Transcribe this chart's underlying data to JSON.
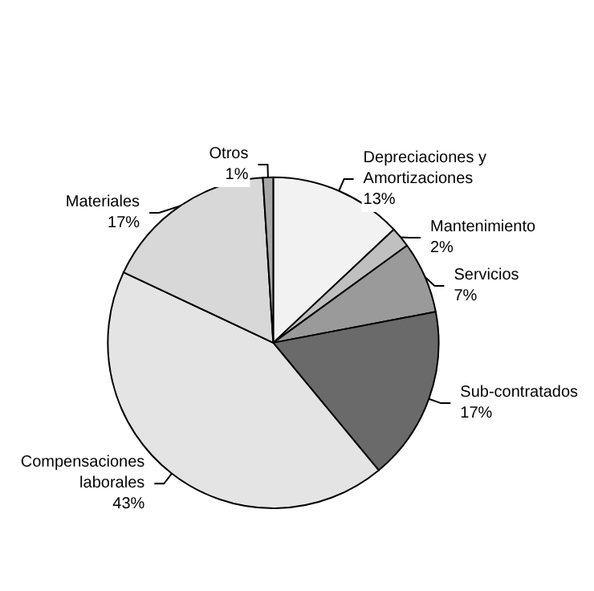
{
  "chart_data": {
    "type": "pie",
    "categories": [
      "Depreciaciones y Amortizaciones",
      "Mantenimiento",
      "Servicios",
      "Sub-contratados",
      "Compensaciones laborales",
      "Materiales",
      "Otros"
    ],
    "values": [
      13,
      2,
      7,
      17,
      43,
      17,
      1
    ],
    "value_labels": [
      "13%",
      "2%",
      "7%",
      "17%",
      "43%",
      "17%",
      "1%"
    ],
    "colors": [
      "#f2f2f2",
      "#c0c0c0",
      "#9a9a9a",
      "#6a6a6a",
      "#e4e4e4",
      "#d8d8d8",
      "#a8a8a8"
    ],
    "legend": false
  }
}
